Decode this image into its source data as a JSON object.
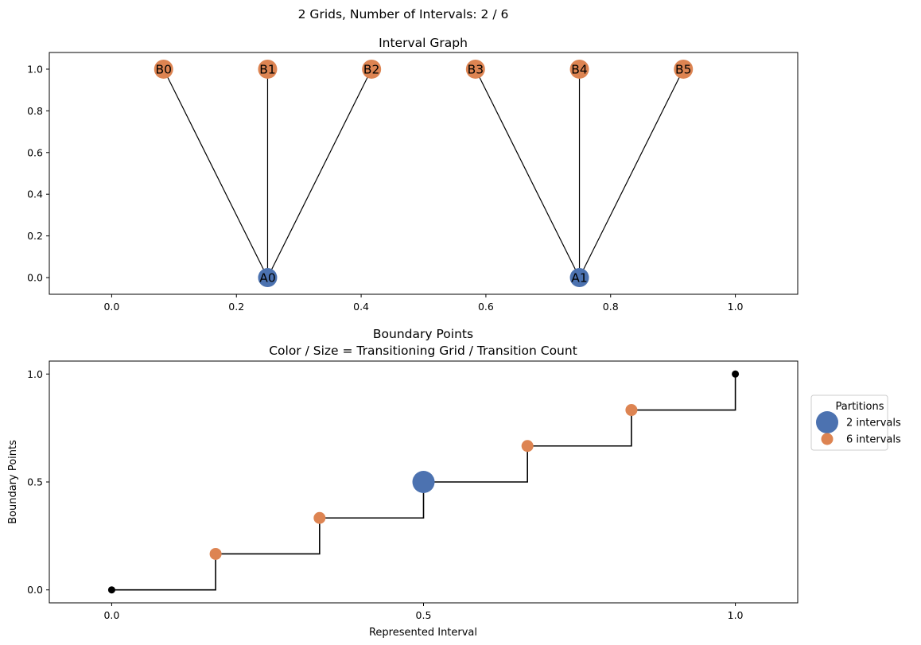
{
  "figure": {
    "suptitle": "2 Grids, Number of Intervals: 2 / 6"
  },
  "colors": {
    "grid_a": "#4c72b0",
    "grid_b": "#dd8452",
    "edge": "#000000"
  },
  "chart_data": [
    {
      "type": "network",
      "title": "Interval Graph",
      "xlim": [
        -0.1,
        1.1
      ],
      "ylim": [
        -0.08,
        1.08
      ],
      "xticks": [
        0.0,
        0.2,
        0.4,
        0.6,
        0.8,
        1.0
      ],
      "xtick_labels": [
        "0.0",
        "0.2",
        "0.4",
        "0.6",
        "0.8",
        "1.0"
      ],
      "yticks": [
        0.0,
        0.2,
        0.4,
        0.6,
        0.8,
        1.0
      ],
      "ytick_labels": [
        "0.0",
        "0.2",
        "0.4",
        "0.6",
        "0.8",
        "1.0"
      ],
      "nodes": [
        {
          "label": "A0",
          "x": 0.25,
          "y": 0.0,
          "group": "grid_a"
        },
        {
          "label": "A1",
          "x": 0.75,
          "y": 0.0,
          "group": "grid_a"
        },
        {
          "label": "B0",
          "x": 0.0833,
          "y": 1.0,
          "group": "grid_b"
        },
        {
          "label": "B1",
          "x": 0.25,
          "y": 1.0,
          "group": "grid_b"
        },
        {
          "label": "B2",
          "x": 0.4167,
          "y": 1.0,
          "group": "grid_b"
        },
        {
          "label": "B3",
          "x": 0.5833,
          "y": 1.0,
          "group": "grid_b"
        },
        {
          "label": "B4",
          "x": 0.75,
          "y": 1.0,
          "group": "grid_b"
        },
        {
          "label": "B5",
          "x": 0.9167,
          "y": 1.0,
          "group": "grid_b"
        }
      ],
      "edges": [
        [
          "A0",
          "B0"
        ],
        [
          "A0",
          "B1"
        ],
        [
          "A0",
          "B2"
        ],
        [
          "A1",
          "B3"
        ],
        [
          "A1",
          "B4"
        ],
        [
          "A1",
          "B5"
        ]
      ]
    },
    {
      "type": "step+scatter",
      "title_lines": [
        "Boundary Points",
        "Color / Size = Transitioning Grid / Transition Count"
      ],
      "xlabel": "Represented Interval",
      "ylabel": "Boundary Points",
      "xlim": [
        -0.2,
        2.2
      ],
      "ylim": [
        -0.06,
        1.06
      ],
      "xticks": [
        0,
        1,
        2
      ],
      "xtick_labels": [
        "0.0",
        "0.5",
        "1.0"
      ],
      "yticks": [
        0.0,
        0.5,
        1.0
      ],
      "ytick_labels": [
        "0.0",
        "0.5",
        "1.0"
      ],
      "step_x": [
        0,
        0.3333,
        0.6667,
        1.0,
        1.3333,
        1.6667,
        2.0
      ],
      "step_y": [
        0.0,
        0.1667,
        0.3333,
        0.5,
        0.6667,
        0.8333,
        1.0
      ],
      "endpoints": [
        {
          "x": 0,
          "y": 0.0
        },
        {
          "x": 2,
          "y": 1.0
        }
      ],
      "points": [
        {
          "x": 0.3333,
          "y": 0.1667,
          "group": "grid_b"
        },
        {
          "x": 0.6667,
          "y": 0.3333,
          "group": "grid_b"
        },
        {
          "x": 1.0,
          "y": 0.5,
          "group": "grid_a"
        },
        {
          "x": 1.3333,
          "y": 0.6667,
          "group": "grid_b"
        },
        {
          "x": 1.6667,
          "y": 0.8333,
          "group": "grid_b"
        }
      ],
      "legend": {
        "title": "Partitions",
        "position": "right-outside",
        "entries": [
          {
            "label": "2 intervals",
            "group": "grid_a",
            "size": "large"
          },
          {
            "label": "6 intervals",
            "group": "grid_b",
            "size": "small"
          }
        ]
      }
    }
  ]
}
